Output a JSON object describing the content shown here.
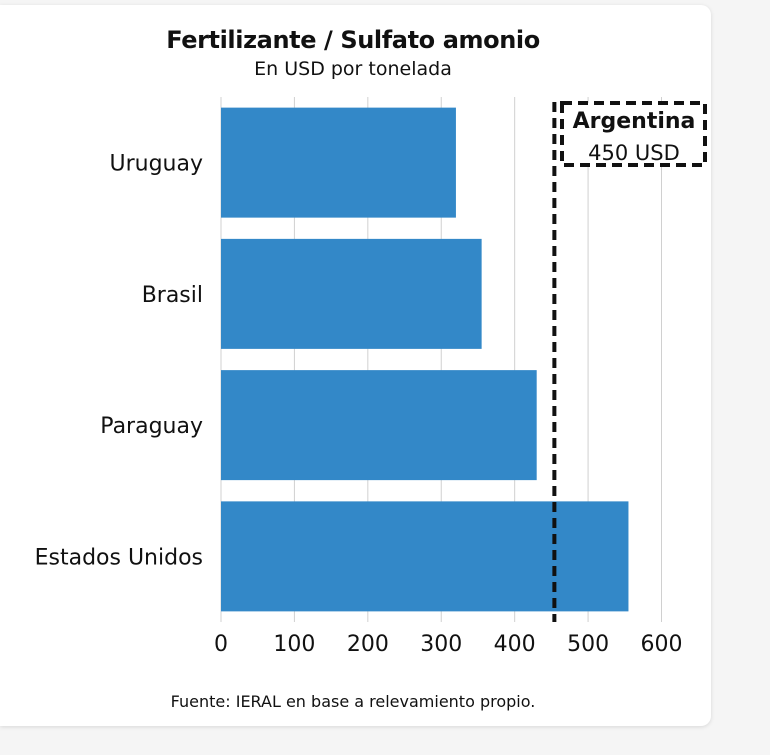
{
  "chart_data": {
    "type": "bar",
    "orientation": "horizontal",
    "title": "Fertilizante / Sulfato amonio",
    "subtitle": "En USD por tonelada",
    "categories": [
      "Uruguay",
      "Brasil",
      "Paraguay",
      "Estados Unidos"
    ],
    "values": [
      320,
      355,
      430,
      555
    ],
    "xlim": [
      0,
      650
    ],
    "xticks": [
      0,
      100,
      200,
      300,
      400,
      500,
      600
    ],
    "grid": true,
    "bar_color": "#3388c8",
    "reference_line": {
      "value": 450,
      "label": "Argentina",
      "value_label": "450 USD",
      "style": "dashed"
    },
    "source": "Fuente: IERAL en base a relevamiento propio."
  }
}
